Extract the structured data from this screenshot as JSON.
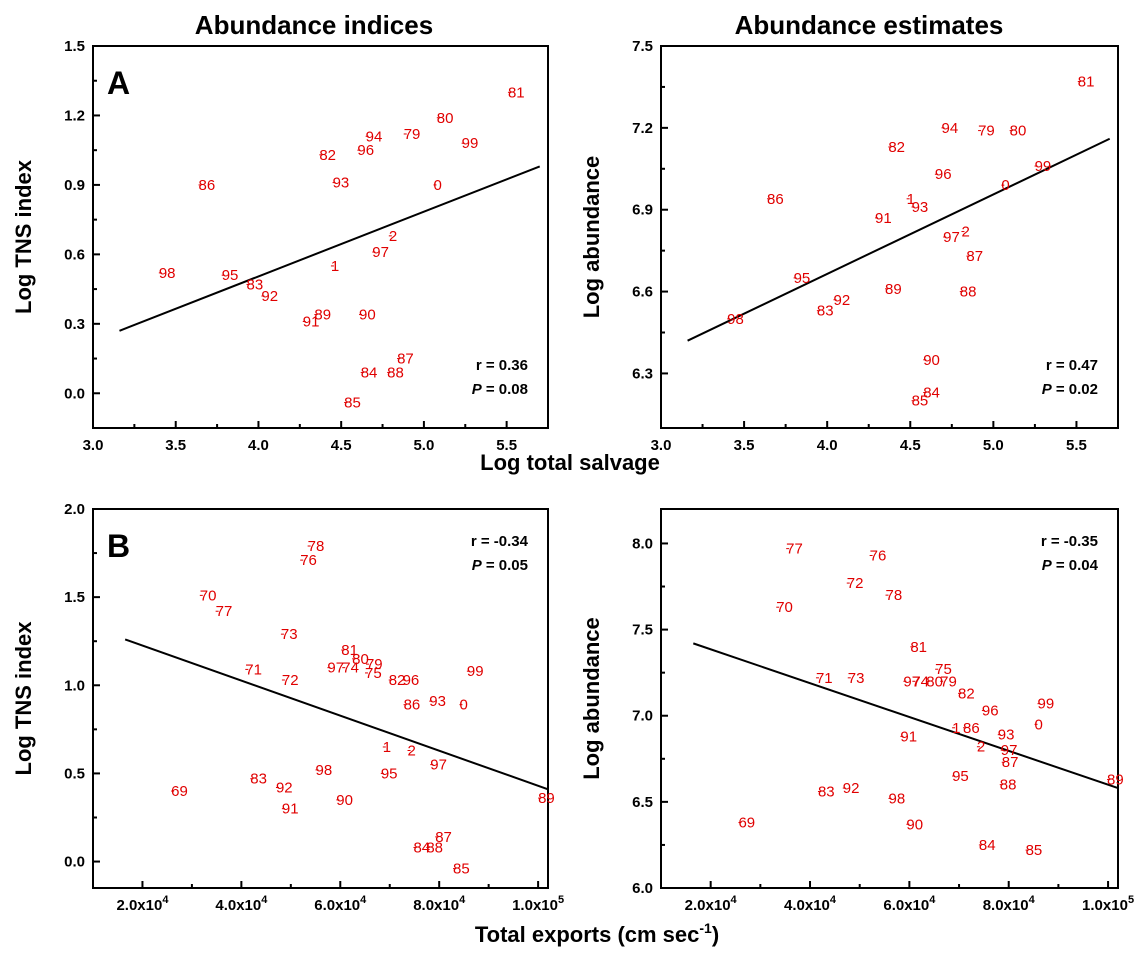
{
  "figure": {
    "title_left": "Abundance indices",
    "title_right": "Abundance estimates",
    "xlabel_top": "Log total salvage",
    "xlabel_bottom": "Total exports (cm sec",
    "xlabel_bottom_sup": "-1",
    "xlabel_bottom_end": ")",
    "panel_a": "A",
    "panel_b": "B"
  },
  "chart_data": [
    {
      "type": "scatter",
      "id": "A-left",
      "ylabel": "Log TNS index",
      "xlim": [
        3.0,
        5.75
      ],
      "ylim": [
        -0.15,
        1.5
      ],
      "xticks": [
        "3.0",
        "3.5",
        "4.0",
        "4.5",
        "5.0",
        "5.5"
      ],
      "yticks": [
        "0.0",
        "0.3",
        "0.6",
        "0.9",
        "1.2",
        "1.5"
      ],
      "xtick_values": [
        3.0,
        3.5,
        4.0,
        4.5,
        5.0,
        5.5
      ],
      "ytick_values": [
        0.0,
        0.3,
        0.6,
        0.9,
        1.2,
        1.5
      ],
      "stat_r": "r = 0.36",
      "stat_p": " = 0.08",
      "fit": [
        [
          3.16,
          0.27
        ],
        [
          5.7,
          0.98
        ]
      ],
      "points": [
        {
          "label": "81",
          "x": 5.52,
          "y": 1.3
        },
        {
          "label": "80",
          "x": 5.09,
          "y": 1.19
        },
        {
          "label": "79",
          "x": 4.89,
          "y": 1.12
        },
        {
          "label": "99",
          "x": 5.24,
          "y": 1.08
        },
        {
          "label": "94",
          "x": 4.66,
          "y": 1.11
        },
        {
          "label": "82",
          "x": 4.38,
          "y": 1.03
        },
        {
          "label": "96",
          "x": 4.61,
          "y": 1.05
        },
        {
          "label": "93",
          "x": 4.46,
          "y": 0.91
        },
        {
          "label": "0",
          "x": 5.07,
          "y": 0.9
        },
        {
          "label": "86",
          "x": 3.65,
          "y": 0.9
        },
        {
          "label": "2",
          "x": 4.8,
          "y": 0.68
        },
        {
          "label": "97",
          "x": 4.7,
          "y": 0.61
        },
        {
          "label": "1",
          "x": 4.45,
          "y": 0.55
        },
        {
          "label": "98",
          "x": 3.41,
          "y": 0.52
        },
        {
          "label": "95",
          "x": 3.79,
          "y": 0.51
        },
        {
          "label": "83",
          "x": 3.94,
          "y": 0.47
        },
        {
          "label": "92",
          "x": 4.03,
          "y": 0.42
        },
        {
          "label": "89",
          "x": 4.35,
          "y": 0.34
        },
        {
          "label": "91",
          "x": 4.28,
          "y": 0.31
        },
        {
          "label": "90",
          "x": 4.62,
          "y": 0.34
        },
        {
          "label": "87",
          "x": 4.85,
          "y": 0.15
        },
        {
          "label": "84",
          "x": 4.63,
          "y": 0.09
        },
        {
          "label": "88",
          "x": 4.79,
          "y": 0.09
        },
        {
          "label": "85",
          "x": 4.53,
          "y": -0.04
        }
      ]
    },
    {
      "type": "scatter",
      "id": "A-right",
      "ylabel": "Log abundance",
      "xlim": [
        3.0,
        5.75
      ],
      "ylim": [
        6.1,
        7.5
      ],
      "xticks": [
        "3.0",
        "3.5",
        "4.0",
        "4.5",
        "5.0",
        "5.5"
      ],
      "yticks": [
        "6.3",
        "6.6",
        "6.9",
        "7.2",
        "7.5"
      ],
      "xtick_values": [
        3.0,
        3.5,
        4.0,
        4.5,
        5.0,
        5.5
      ],
      "ytick_values": [
        6.3,
        6.6,
        6.9,
        7.2,
        7.5
      ],
      "stat_r": "r = 0.47",
      "stat_p": " = 0.02",
      "fit": [
        [
          3.16,
          6.42
        ],
        [
          5.7,
          7.16
        ]
      ],
      "points": [
        {
          "label": "81",
          "x": 5.52,
          "y": 7.37
        },
        {
          "label": "94",
          "x": 4.7,
          "y": 7.2
        },
        {
          "label": "79",
          "x": 4.92,
          "y": 7.19
        },
        {
          "label": "80",
          "x": 5.11,
          "y": 7.19
        },
        {
          "label": "82",
          "x": 4.38,
          "y": 7.13
        },
        {
          "label": "99",
          "x": 5.26,
          "y": 7.06
        },
        {
          "label": "96",
          "x": 4.66,
          "y": 7.03
        },
        {
          "label": "0",
          "x": 5.06,
          "y": 6.99
        },
        {
          "label": "86",
          "x": 3.65,
          "y": 6.94
        },
        {
          "label": "1",
          "x": 4.49,
          "y": 6.94
        },
        {
          "label": "93",
          "x": 4.52,
          "y": 6.91
        },
        {
          "label": "91",
          "x": 4.3,
          "y": 6.87
        },
        {
          "label": "2",
          "x": 4.82,
          "y": 6.82
        },
        {
          "label": "97",
          "x": 4.71,
          "y": 6.8
        },
        {
          "label": "87",
          "x": 4.85,
          "y": 6.73
        },
        {
          "label": "95",
          "x": 3.81,
          "y": 6.65
        },
        {
          "label": "89",
          "x": 4.36,
          "y": 6.61
        },
        {
          "label": "88",
          "x": 4.81,
          "y": 6.6
        },
        {
          "label": "92",
          "x": 4.05,
          "y": 6.57
        },
        {
          "label": "83",
          "x": 3.95,
          "y": 6.53
        },
        {
          "label": "98",
          "x": 3.41,
          "y": 6.5
        },
        {
          "label": "90",
          "x": 4.59,
          "y": 6.35
        },
        {
          "label": "84",
          "x": 4.59,
          "y": 6.23
        },
        {
          "label": "85",
          "x": 4.52,
          "y": 6.2
        }
      ]
    },
    {
      "type": "scatter",
      "id": "B-left",
      "ylabel": "Log TNS index",
      "xlim": [
        10000,
        102000
      ],
      "ylim": [
        -0.15,
        2.0
      ],
      "xticks": [
        "2.0x10",
        "4.0x10",
        "6.0x10",
        "8.0x10",
        "1.0x10"
      ],
      "xtick_exp": [
        "4",
        "4",
        "4",
        "4",
        "5"
      ],
      "yticks": [
        "0.0",
        "0.5",
        "1.0",
        "1.5",
        "2.0"
      ],
      "xtick_values": [
        20000,
        40000,
        60000,
        80000,
        100000
      ],
      "ytick_values": [
        0.0,
        0.5,
        1.0,
        1.5,
        2.0
      ],
      "stat_r": "r = -0.34",
      "stat_p": " = 0.05",
      "fit": [
        [
          16500,
          1.26
        ],
        [
          102000,
          0.41
        ]
      ],
      "points": [
        {
          "label": "78",
          "x": 53800,
          "y": 1.79
        },
        {
          "label": "76",
          "x": 52300,
          "y": 1.71
        },
        {
          "label": "70",
          "x": 32000,
          "y": 1.51
        },
        {
          "label": "77",
          "x": 35200,
          "y": 1.42
        },
        {
          "label": "73",
          "x": 48400,
          "y": 1.29
        },
        {
          "label": "81",
          "x": 60600,
          "y": 1.2
        },
        {
          "label": "80",
          "x": 62800,
          "y": 1.15
        },
        {
          "label": "79",
          "x": 65600,
          "y": 1.12
        },
        {
          "label": "97",
          "x": 57800,
          "y": 1.1
        },
        {
          "label": "74",
          "x": 60800,
          "y": 1.1
        },
        {
          "label": "75",
          "x": 65400,
          "y": 1.07
        },
        {
          "label": "71",
          "x": 41200,
          "y": 1.09
        },
        {
          "label": "72",
          "x": 48600,
          "y": 1.03
        },
        {
          "label": "82",
          "x": 70200,
          "y": 1.03
        },
        {
          "label": "96",
          "x": 73000,
          "y": 1.03
        },
        {
          "label": "99",
          "x": 86000,
          "y": 1.08
        },
        {
          "label": "93",
          "x": 78400,
          "y": 0.91
        },
        {
          "label": "86",
          "x": 73200,
          "y": 0.89
        },
        {
          "label": "0",
          "x": 84500,
          "y": 0.89
        },
        {
          "label": "1",
          "x": 69000,
          "y": 0.65
        },
        {
          "label": "2",
          "x": 74000,
          "y": 0.63
        },
        {
          "label": "97",
          "x": 78600,
          "y": 0.55
        },
        {
          "label": "98",
          "x": 55400,
          "y": 0.52
        },
        {
          "label": "95",
          "x": 68600,
          "y": 0.5
        },
        {
          "label": "83",
          "x": 42200,
          "y": 0.47
        },
        {
          "label": "92",
          "x": 47400,
          "y": 0.42
        },
        {
          "label": "69",
          "x": 26200,
          "y": 0.4
        },
        {
          "label": "90",
          "x": 59600,
          "y": 0.35
        },
        {
          "label": "91",
          "x": 48600,
          "y": 0.3
        },
        {
          "label": "87",
          "x": 79600,
          "y": 0.14
        },
        {
          "label": "84",
          "x": 75200,
          "y": 0.08
        },
        {
          "label": "88",
          "x": 77800,
          "y": 0.08
        },
        {
          "label": "85",
          "x": 83200,
          "y": -0.04
        },
        {
          "label": "89",
          "x": 100400,
          "y": 0.36
        }
      ]
    },
    {
      "type": "scatter",
      "id": "B-right",
      "ylabel": "Log abundance",
      "xlim": [
        10000,
        102000
      ],
      "ylim": [
        6.0,
        8.2
      ],
      "xticks": [
        "2.0x10",
        "4.0x10",
        "6.0x10",
        "8.0x10",
        "1.0x10"
      ],
      "xtick_exp": [
        "4",
        "4",
        "4",
        "4",
        "5"
      ],
      "yticks": [
        "6.0",
        "6.5",
        "7.0",
        "7.5",
        "8.0"
      ],
      "xtick_values": [
        20000,
        40000,
        60000,
        80000,
        100000
      ],
      "ytick_values": [
        6.0,
        6.5,
        7.0,
        7.5,
        8.0
      ],
      "stat_r": "r = -0.35",
      "stat_p": " = 0.04",
      "fit": [
        [
          16500,
          7.42
        ],
        [
          102000,
          6.58
        ]
      ],
      "points": [
        {
          "label": "77",
          "x": 35600,
          "y": 7.97
        },
        {
          "label": "76",
          "x": 52400,
          "y": 7.93
        },
        {
          "label": "72",
          "x": 47800,
          "y": 7.77
        },
        {
          "label": "78",
          "x": 55600,
          "y": 7.7
        },
        {
          "label": "70",
          "x": 33600,
          "y": 7.63
        },
        {
          "label": "81",
          "x": 60600,
          "y": 7.4
        },
        {
          "label": "75",
          "x": 65600,
          "y": 7.27
        },
        {
          "label": "71",
          "x": 41600,
          "y": 7.22
        },
        {
          "label": "73",
          "x": 48000,
          "y": 7.22
        },
        {
          "label": "97",
          "x": 59200,
          "y": 7.2
        },
        {
          "label": "74",
          "x": 61000,
          "y": 7.2
        },
        {
          "label": "80",
          "x": 63800,
          "y": 7.2
        },
        {
          "label": "79",
          "x": 66600,
          "y": 7.2
        },
        {
          "label": "82",
          "x": 70200,
          "y": 7.13
        },
        {
          "label": "99",
          "x": 86200,
          "y": 7.07
        },
        {
          "label": "96",
          "x": 75000,
          "y": 7.03
        },
        {
          "label": "0",
          "x": 85600,
          "y": 6.95
        },
        {
          "label": "1",
          "x": 69000,
          "y": 6.93
        },
        {
          "label": "86",
          "x": 71200,
          "y": 6.93
        },
        {
          "label": "93",
          "x": 78200,
          "y": 6.89
        },
        {
          "label": "91",
          "x": 58600,
          "y": 6.88
        },
        {
          "label": "2",
          "x": 74000,
          "y": 6.82
        },
        {
          "label": "97",
          "x": 78800,
          "y": 6.8
        },
        {
          "label": "87",
          "x": 79000,
          "y": 6.73
        },
        {
          "label": "95",
          "x": 69000,
          "y": 6.65
        },
        {
          "label": "88",
          "x": 78600,
          "y": 6.6
        },
        {
          "label": "83",
          "x": 42000,
          "y": 6.56
        },
        {
          "label": "92",
          "x": 47000,
          "y": 6.58
        },
        {
          "label": "98",
          "x": 56200,
          "y": 6.52
        },
        {
          "label": "69",
          "x": 26000,
          "y": 6.38
        },
        {
          "label": "90",
          "x": 59800,
          "y": 6.37
        },
        {
          "label": "84",
          "x": 74400,
          "y": 6.25
        },
        {
          "label": "85",
          "x": 83800,
          "y": 6.22
        },
        {
          "label": "89",
          "x": 100200,
          "y": 6.63
        }
      ]
    }
  ]
}
